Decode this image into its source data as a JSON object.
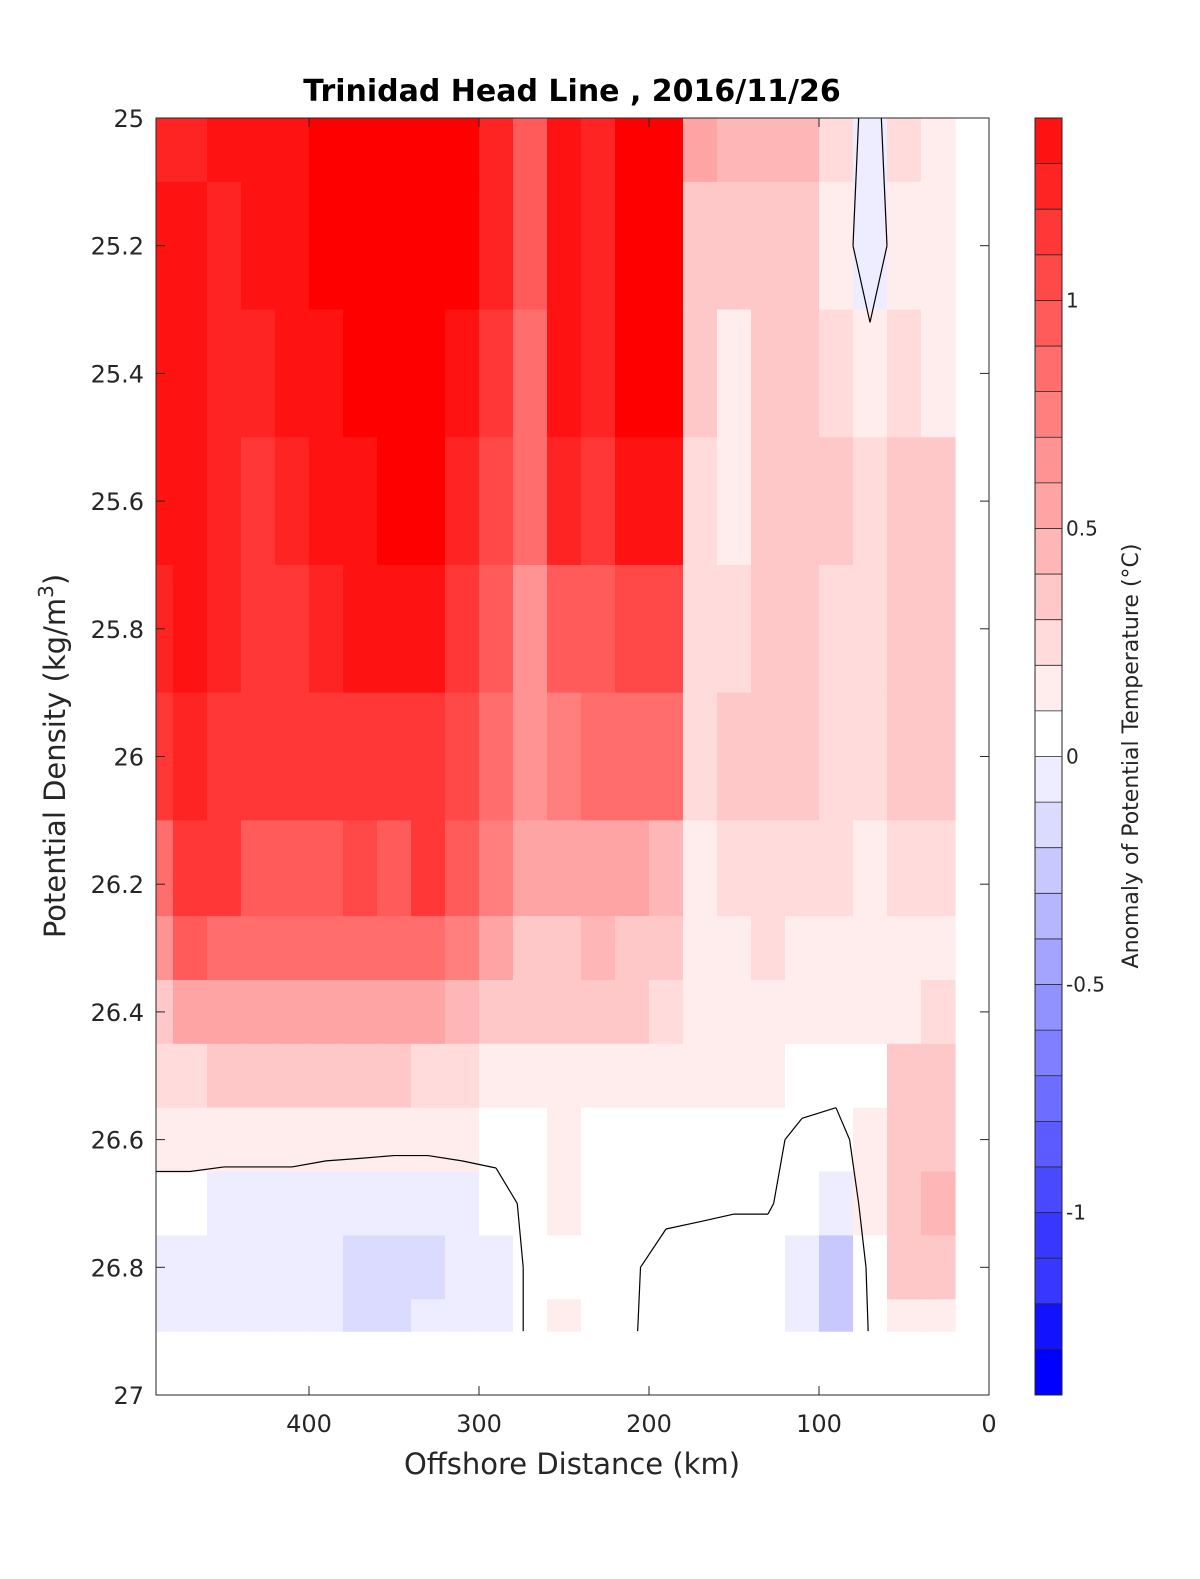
{
  "chart_data": {
    "type": "heatmap",
    "title": "Trinidad Head Line , 2016/11/26",
    "xlabel": "Offshore Distance (km)",
    "ylabel_main": "Potential Density (kg/m",
    "ylabel_sup": "3",
    "ylabel_end": ")",
    "x_ticks": [
      400,
      300,
      200,
      100,
      0
    ],
    "x_tick_labels": [
      "400",
      "300",
      "200",
      "100",
      "0"
    ],
    "xlim": [
      490,
      0
    ],
    "x_reversed": true,
    "y_ticks": [
      25,
      25.2,
      25.4,
      25.6,
      25.8,
      26,
      26.2,
      26.4,
      26.6,
      26.8,
      27
    ],
    "y_tick_labels": [
      "25",
      "25.2",
      "25.4",
      "25.6",
      "25.8",
      "26",
      "26.2",
      "26.4",
      "26.6",
      "26.8",
      "27"
    ],
    "ylim": [
      25,
      27
    ],
    "y_reversed": true,
    "colorbar": {
      "label": "Anomaly of Potential Temperature (°C)",
      "range": [
        -1.4,
        1.4
      ],
      "step": 0.1,
      "ticks": [
        1,
        0.5,
        0,
        -0.5,
        -1
      ],
      "tick_labels": [
        "1",
        "0.5",
        "0",
        "-0.5",
        "-1"
      ],
      "colormap": "blue-white-red",
      "positive_color": "#ff0000",
      "negative_color": "#0000ff",
      "zero_color": "#ffffff"
    },
    "zero_contour": true,
    "x": [
      490,
      470,
      450,
      430,
      410,
      390,
      370,
      350,
      330,
      310,
      290,
      270,
      250,
      230,
      210,
      190,
      170,
      150,
      130,
      110,
      90,
      70,
      50,
      30
    ],
    "y": [
      25.0,
      25.2,
      25.4,
      25.6,
      25.8,
      26.0,
      26.2,
      26.3,
      26.4,
      26.5,
      26.6,
      26.7,
      26.8,
      26.9
    ],
    "z": [
      [
        1.2,
        1.2,
        1.25,
        1.25,
        1.3,
        1.35,
        1.4,
        1.4,
        1.4,
        1.4,
        1.2,
        0.9,
        1.3,
        1.2,
        1.4,
        1.4,
        0.45,
        0.4,
        0.4,
        0.4,
        0.2,
        -0.1,
        0.2,
        0.15
      ],
      [
        1.25,
        1.25,
        1.2,
        1.25,
        1.3,
        1.35,
        1.4,
        1.4,
        1.4,
        1.35,
        1.2,
        0.85,
        1.3,
        1.2,
        1.4,
        1.4,
        0.35,
        0.3,
        0.35,
        0.35,
        0.15,
        -0.15,
        0.15,
        0.15
      ],
      [
        1.3,
        1.3,
        1.2,
        1.2,
        1.25,
        1.3,
        1.35,
        1.4,
        1.4,
        1.3,
        1.1,
        0.8,
        1.3,
        1.2,
        1.4,
        1.35,
        0.25,
        0.05,
        0.3,
        0.3,
        0.2,
        0.1,
        0.2,
        0.15
      ],
      [
        1.25,
        1.3,
        1.2,
        1.15,
        1.2,
        1.25,
        1.3,
        1.35,
        1.4,
        1.2,
        1.0,
        0.75,
        1.2,
        1.1,
        1.3,
        1.3,
        0.2,
        0.1,
        0.25,
        0.3,
        0.25,
        0.2,
        0.3,
        0.25
      ],
      [
        1.2,
        1.25,
        1.2,
        1.1,
        1.15,
        1.2,
        1.25,
        1.25,
        1.25,
        1.1,
        0.85,
        0.6,
        0.9,
        0.9,
        1.0,
        1.0,
        0.2,
        0.2,
        0.25,
        0.25,
        0.2,
        0.2,
        0.3,
        0.25
      ],
      [
        1.1,
        1.2,
        1.15,
        1.05,
        1.05,
        1.1,
        1.15,
        1.1,
        1.15,
        1.0,
        0.75,
        0.55,
        0.65,
        0.75,
        0.8,
        0.75,
        0.2,
        0.25,
        0.25,
        0.25,
        0.2,
        0.2,
        0.3,
        0.25
      ],
      [
        0.8,
        1.1,
        1.05,
        0.95,
        0.95,
        0.95,
        1.0,
        0.95,
        1.05,
        0.95,
        0.65,
        0.45,
        0.45,
        0.5,
        0.5,
        0.4,
        0.15,
        0.2,
        0.2,
        0.2,
        0.2,
        0.1,
        0.2,
        0.2
      ],
      [
        0.6,
        0.85,
        0.8,
        0.75,
        0.75,
        0.8,
        0.8,
        0.75,
        0.8,
        0.7,
        0.45,
        0.35,
        0.35,
        0.4,
        0.35,
        0.3,
        0.15,
        0.15,
        0.2,
        0.15,
        0.15,
        0.1,
        0.15,
        0.15
      ],
      [
        0.35,
        0.5,
        0.5,
        0.45,
        0.45,
        0.45,
        0.45,
        0.45,
        0.45,
        0.4,
        0.3,
        0.25,
        0.25,
        0.25,
        0.25,
        0.2,
        0.1,
        0.1,
        0.15,
        0.1,
        0.1,
        0.05,
        0.15,
        0.2
      ],
      [
        0.2,
        0.2,
        0.25,
        0.25,
        0.25,
        0.25,
        0.25,
        0.25,
        0.2,
        0.2,
        0.15,
        0.1,
        0.12,
        0.1,
        0.08,
        0.06,
        0.05,
        0.05,
        0.05,
        0.04,
        0.04,
        0.03,
        0.25,
        0.3
      ],
      [
        0.05,
        0.05,
        0.06,
        0.06,
        0.06,
        0.05,
        0.05,
        0.05,
        0.05,
        0.05,
        0.04,
        0.04,
        0.05,
        0.03,
        0.03,
        0.02,
        0.02,
        0.03,
        0.02,
        -0.02,
        -0.04,
        0.06,
        0.3,
        0.35
      ],
      [
        -0.05,
        -0.05,
        -0.08,
        -0.08,
        -0.08,
        -0.1,
        -0.12,
        -0.15,
        -0.15,
        -0.1,
        -0.05,
        0.03,
        0.05,
        0.03,
        0.03,
        0.02,
        0.02,
        0.01,
        0.01,
        -0.05,
        -0.1,
        0.05,
        0.35,
        0.4
      ],
      [
        -0.1,
        -0.08,
        -0.08,
        -0.1,
        -0.15,
        -0.15,
        -0.18,
        -0.18,
        -0.18,
        -0.15,
        -0.08,
        0.02,
        0.03,
        0.02,
        0.01,
        -0.03,
        -0.05,
        -0.05,
        -0.05,
        -0.1,
        -0.3,
        0.04,
        0.25,
        0.25
      ],
      [
        -0.1,
        -0.12,
        -0.15,
        -0.1,
        -0.15,
        -0.15,
        -0.18,
        -0.18,
        -0.15,
        -0.15,
        -0.08,
        0.02,
        0.06,
        0.02,
        0.01,
        -0.05,
        -0.05,
        -0.03,
        -0.03,
        -0.1,
        -0.35,
        0.02,
        0.1,
        0.1
      ]
    ]
  }
}
